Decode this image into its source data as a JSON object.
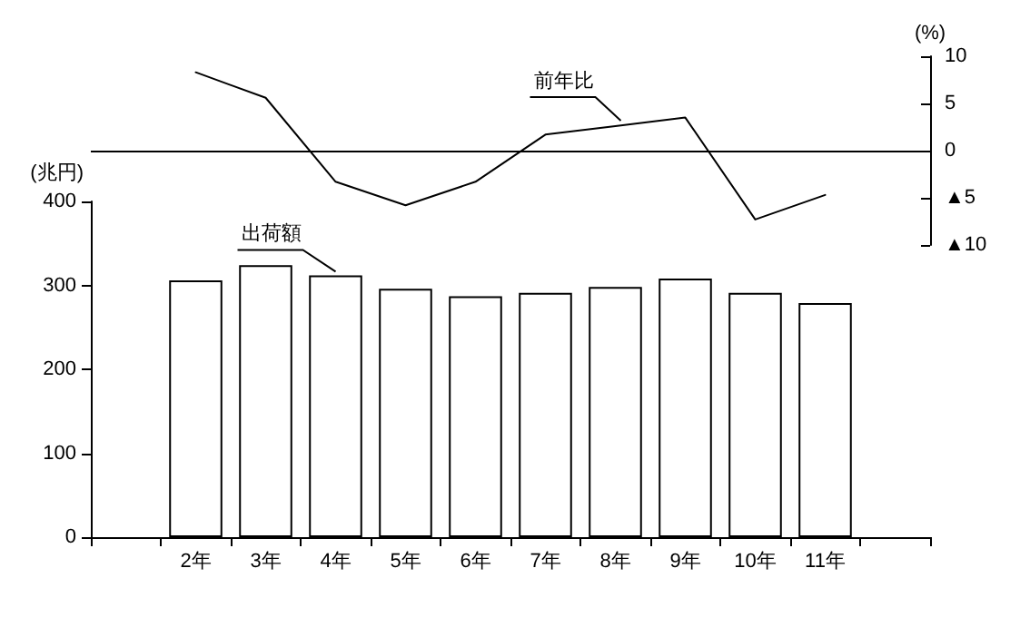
{
  "chart_data": [
    {
      "type": "line",
      "categories": [
        null,
        null,
        null,
        null,
        null,
        null,
        null,
        null,
        null,
        null
      ],
      "series": [
        {
          "name": "前年比",
          "color": "#000000",
          "values": [
            8.3,
            5.6,
            -3.3,
            -5.8,
            -3.3,
            1.7,
            2.6,
            3.5,
            -7.3,
            -4.7
          ]
        }
      ],
      "ylim": [
        -10,
        10
      ],
      "yticks": [
        10,
        5,
        0,
        {
          "value": -5,
          "label": "▲5"
        },
        {
          "value": -10,
          "label": "▲10"
        }
      ],
      "ylabel": "(%)",
      "ref_lines": [
        {
          "axis": "y",
          "value": 0,
          "color": "#000000"
        }
      ],
      "tick_labels": "y",
      "marker": "none"
    },
    {
      "type": "bar",
      "categories": [
        null,
        "2年",
        "3年",
        "4年",
        "5年",
        "6年",
        "7年",
        "8年",
        "9年",
        "10年",
        "11年",
        null
      ],
      "series": [
        {
          "name": "出荷額",
          "color": "#ffffff",
          "values": [
            null,
            306,
            324,
            312,
            296,
            287,
            291,
            298,
            308,
            291,
            279,
            null
          ]
        }
      ],
      "ylim": [
        0,
        400
      ],
      "yticks": [
        0,
        100,
        200,
        300,
        400
      ],
      "ylabel": "(兆円)"
    }
  ]
}
